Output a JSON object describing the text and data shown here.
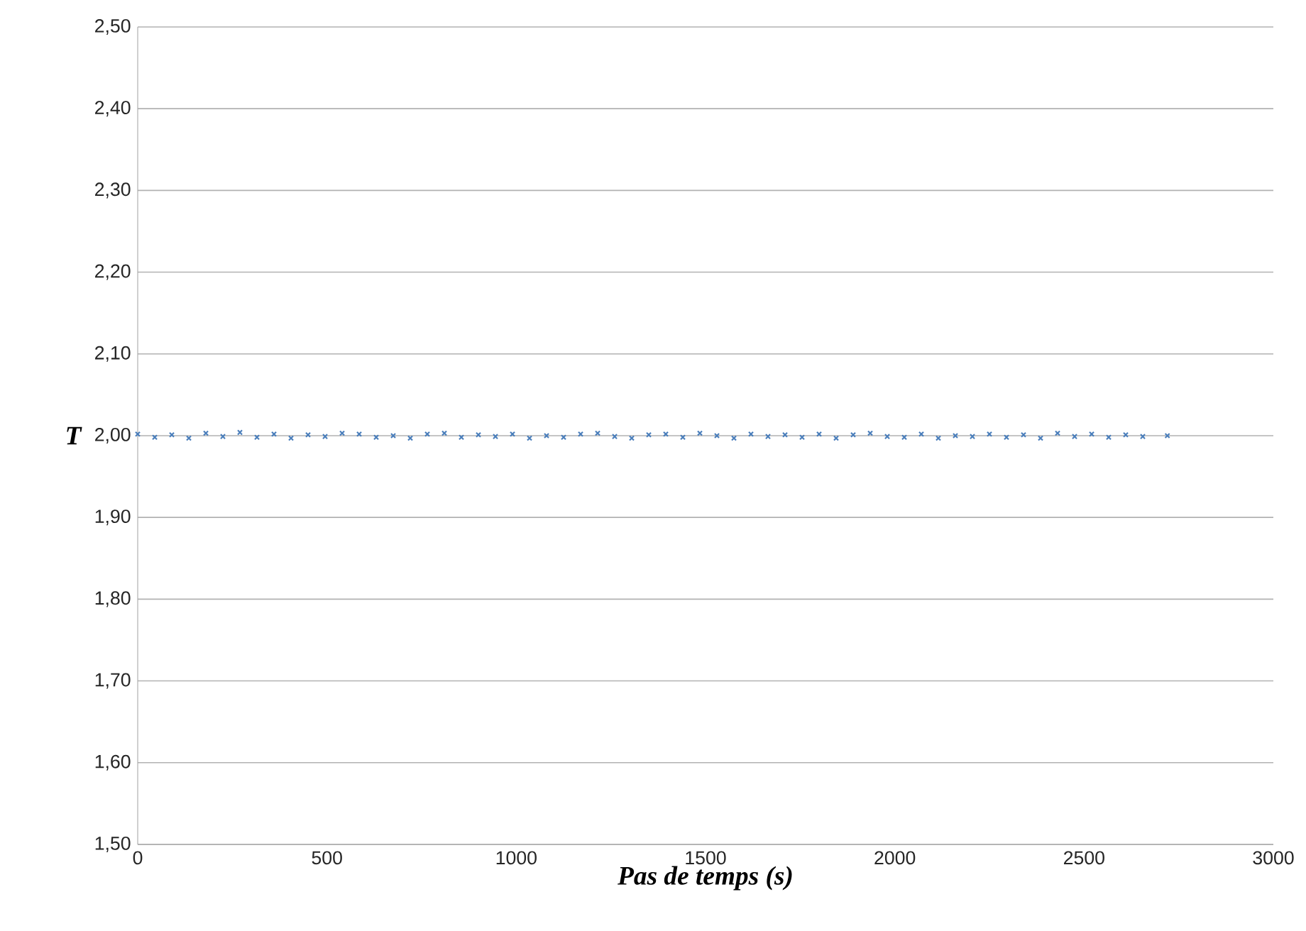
{
  "chart_data": {
    "type": "scatter",
    "xlabel": "Pas de temps (s)",
    "ylabel": "T",
    "marker": "cross",
    "grid": "y",
    "xlim": [
      0,
      3000
    ],
    "xticks": [
      0,
      500,
      1000,
      1500,
      2000,
      2500,
      3000
    ],
    "ylim": [
      1.5,
      2.5
    ],
    "yticks": [
      {
        "value": 1.5,
        "label": "1,50"
      },
      {
        "value": 1.6,
        "label": "1,60"
      },
      {
        "value": 1.7,
        "label": "1,70"
      },
      {
        "value": 1.8,
        "label": "1,80"
      },
      {
        "value": 1.9,
        "label": "1,90"
      },
      {
        "value": 2.0,
        "label": "2,00"
      },
      {
        "value": 2.1,
        "label": "2,10"
      },
      {
        "value": 2.2,
        "label": "2,20"
      },
      {
        "value": 2.3,
        "label": "2,30"
      },
      {
        "value": 2.4,
        "label": "2,40"
      },
      {
        "value": 2.5,
        "label": "2,50"
      }
    ],
    "series": [
      {
        "color": "#4a7ebb",
        "x": [
          0,
          45,
          90,
          135,
          180,
          225,
          270,
          315,
          360,
          405,
          450,
          495,
          540,
          585,
          630,
          675,
          720,
          765,
          810,
          855,
          900,
          945,
          990,
          1035,
          1080,
          1125,
          1170,
          1215,
          1260,
          1305,
          1350,
          1395,
          1440,
          1485,
          1530,
          1575,
          1620,
          1665,
          1710,
          1755,
          1800,
          1845,
          1890,
          1935,
          1980,
          2025,
          2070,
          2115,
          2160,
          2205,
          2250,
          2295,
          2340,
          2385,
          2430,
          2475,
          2520,
          2565,
          2610,
          2655,
          2720
        ],
        "values": [
          2.002,
          1.998,
          2.001,
          1.997,
          2.003,
          1.999,
          2.004,
          1.998,
          2.002,
          1.997,
          2.001,
          1.999,
          2.003,
          2.002,
          1.998,
          2.0,
          1.997,
          2.002,
          2.003,
          1.998,
          2.001,
          1.999,
          2.002,
          1.997,
          2.0,
          1.998,
          2.002,
          2.003,
          1.999,
          1.997,
          2.001,
          2.002,
          1.998,
          2.003,
          2.0,
          1.997,
          2.002,
          1.999,
          2.001,
          1.998,
          2.002,
          1.997,
          2.001,
          2.003,
          1.999,
          1.998,
          2.002,
          1.997,
          2.0,
          1.999,
          2.002,
          1.998,
          2.001,
          1.997,
          2.003,
          1.999,
          2.002,
          1.998,
          2.001,
          1.999,
          2.0
        ]
      }
    ]
  }
}
